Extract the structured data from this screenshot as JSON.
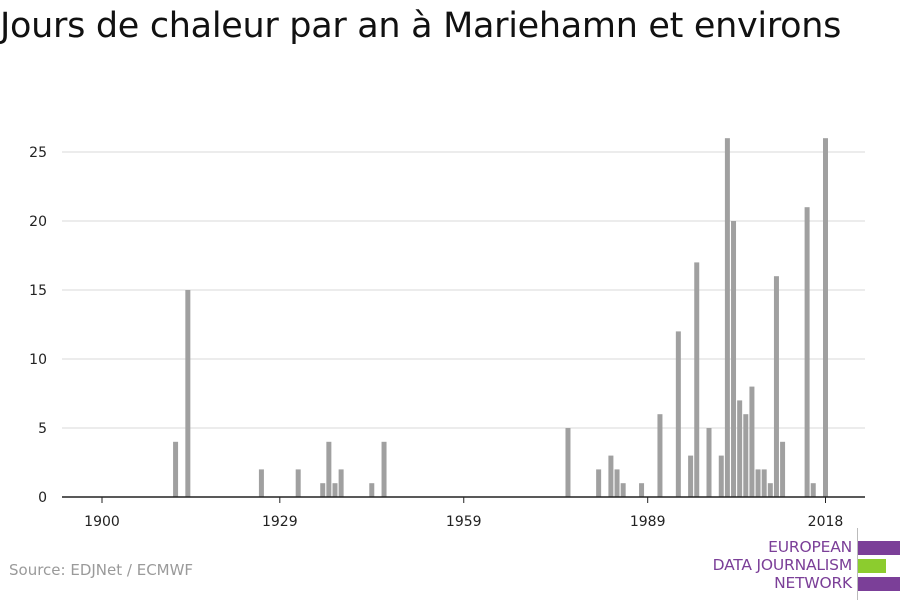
{
  "title": "Jours de chaleur par an à Mariehamn et environs",
  "source": "Source: EDJNet / ECMWF",
  "logo": {
    "lines": [
      "EUROPEAN",
      "DATA JOURNALISM",
      "NETWORK"
    ],
    "colors": {
      "purple": "#7b3f98",
      "green": "#8ccc2e"
    }
  },
  "colors": {
    "bar": "#a0a0a0",
    "grid": "#d9d9d9",
    "axis": "#222222"
  },
  "chart_data": {
    "type": "bar",
    "title": "Jours de chaleur par an à Mariehamn et environs",
    "xlabel": "",
    "ylabel": "",
    "x_ticks": [
      1900,
      1929,
      1959,
      1989,
      2018
    ],
    "y_ticks": [
      0,
      5,
      10,
      15,
      20,
      25
    ],
    "xlim": [
      1898,
      2024
    ],
    "ylim": [
      0,
      26
    ],
    "grid": true,
    "x": [
      1912,
      1914,
      1926,
      1932,
      1936,
      1937,
      1938,
      1939,
      1940,
      1944,
      1946,
      1976,
      1981,
      1983,
      1984,
      1985,
      1988,
      1991,
      1994,
      1996,
      1997,
      1999,
      2001,
      2002,
      2003,
      2004,
      2005,
      2006,
      2007,
      2008,
      2009,
      2010,
      2011,
      2015,
      2016,
      2018
    ],
    "values": [
      4,
      15,
      2,
      2,
      1,
      4,
      1,
      2,
      0,
      1,
      4,
      5,
      2,
      3,
      2,
      1,
      1,
      6,
      12,
      3,
      17,
      5,
      3,
      26,
      20,
      7,
      6,
      8,
      2,
      2,
      1,
      16,
      4,
      21,
      1,
      26
    ]
  }
}
